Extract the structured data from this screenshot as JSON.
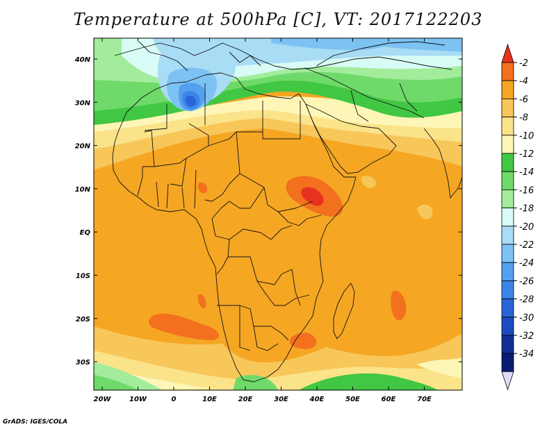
{
  "title": "Temperature at 500hPa [C], VT: 2017122203",
  "credit": "GrADS: IGES/COLA",
  "map": {
    "lon_ticks": [
      "20W",
      "10W",
      "0",
      "10E",
      "20E",
      "30E",
      "40E",
      "50E",
      "60E",
      "70E"
    ],
    "lat_ticks": [
      "40N",
      "30N",
      "20N",
      "10N",
      "EQ",
      "10S",
      "20S",
      "30S"
    ]
  },
  "colorbar": {
    "labels": [
      "-2",
      "-4",
      "-6",
      "-8",
      "-10",
      "-12",
      "-14",
      "-16",
      "-18",
      "-20",
      "-22",
      "-24",
      "-26",
      "-28",
      "-30",
      "-32",
      "-34"
    ],
    "colors": [
      "#e8321f",
      "#f2701e",
      "#f5a623",
      "#f8c75a",
      "#fbe38a",
      "#fdf6b7",
      "#41c743",
      "#6fda6a",
      "#a2ec9c",
      "#d8fbf5",
      "#a9dcf5",
      "#7cc2f2",
      "#559ff0",
      "#3c85e8",
      "#2a65d6",
      "#1c4bc0",
      "#122f96",
      "#091e73",
      "#dcdcf7"
    ]
  }
}
